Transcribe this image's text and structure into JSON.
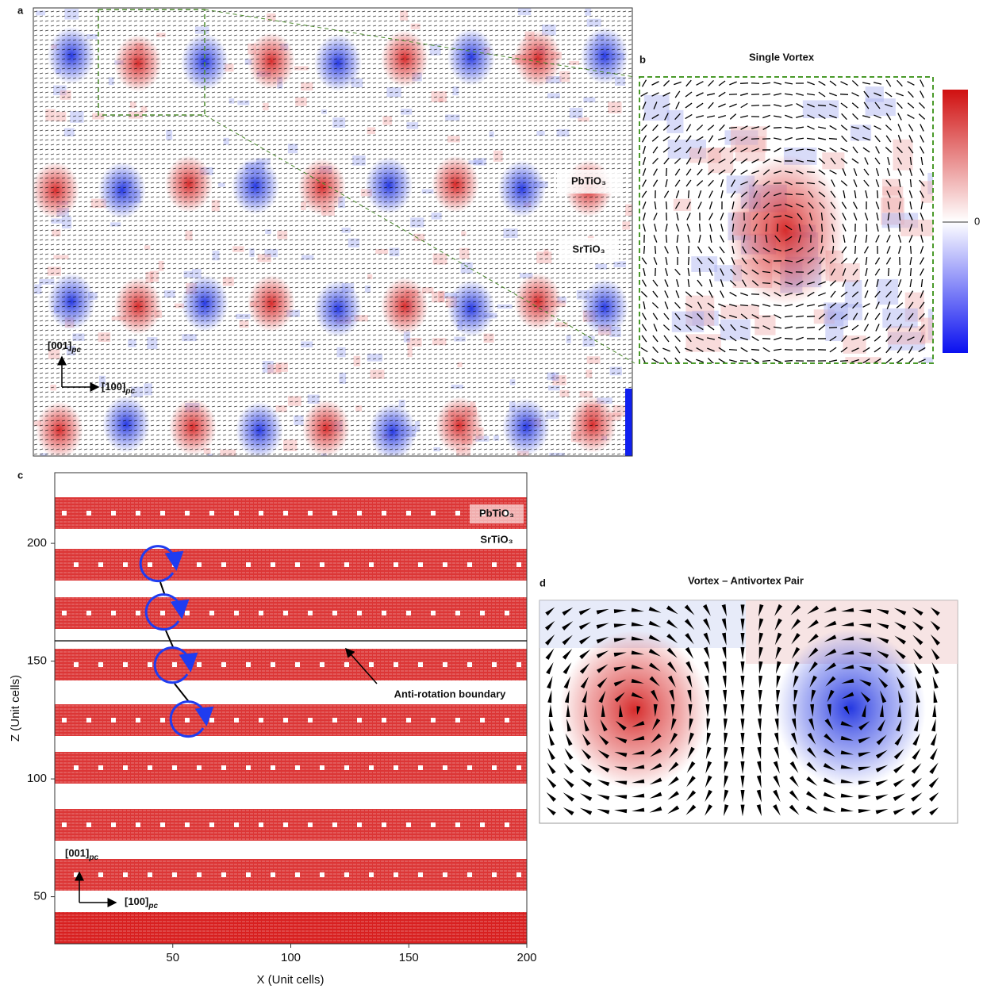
{
  "panel_a": {
    "label": "a",
    "pbtio3": "PbTiO₃",
    "srtio3": "SrTiO₃",
    "axis_up": {
      "main": "[001]",
      "sub": "pc"
    },
    "axis_right": {
      "main": "[100]",
      "sub": "pc"
    }
  },
  "panel_b": {
    "label": "b",
    "title": "Single Vortex",
    "colorbar_tick": 0
  },
  "panel_c": {
    "label": "c",
    "xlabel": "X (Unit cells)",
    "ylabel": "Z (Unit cells)",
    "xlim": [
      0,
      200
    ],
    "ylim": [
      30,
      230
    ],
    "xticks": [
      50,
      100,
      150,
      200
    ],
    "yticks": [
      50,
      100,
      150,
      200
    ],
    "pbtio3": "PbTiO₃",
    "srtio3": "SrTiO₃",
    "annotation": "Anti-rotation boundary",
    "axis_up": {
      "main": "[001]",
      "sub": "pc"
    },
    "axis_right": {
      "main": "[100]",
      "sub": "pc"
    }
  },
  "panel_d": {
    "label": "d",
    "title": "Vortex – Antivortex Pair"
  }
}
